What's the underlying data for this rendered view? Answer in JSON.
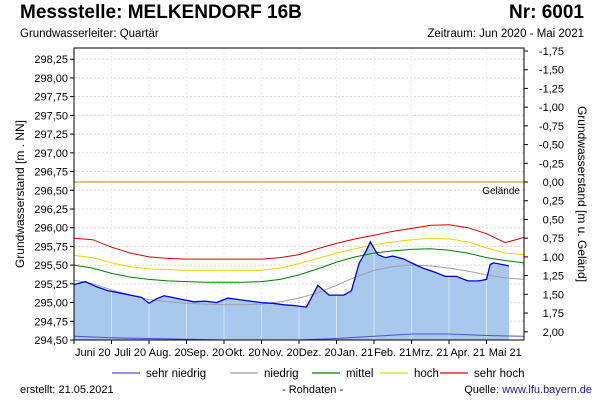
{
  "header": {
    "title": "Messstelle: MELKENDORF 16B",
    "station_nr": "Nr: 6001",
    "aquifer": "Grundwasserleiter: Quartär",
    "period": "Zeitraum: Jun 2020 - Mai 2021"
  },
  "footer": {
    "created": "erstellt:  21.05.2021",
    "note": "- Rohdaten -",
    "source_label": "Quelle: ",
    "source_value": "www.lfu.bayern.de"
  },
  "colors": {
    "sehr_niedrig": "#5050d0",
    "niedrig": "#a0a0a0",
    "mittel": "#008000",
    "hoch": "#e8d800",
    "sehr_hoch": "#e00000",
    "measured": "#0000dd",
    "area": "#a8c8ee",
    "gelaende": "#c8a040"
  },
  "chart_data": {
    "type": "line",
    "ylabel_left": "Grundwasserstand [m . NN]",
    "ylabel_right": "Grundwasserstand [m u. Geländ]",
    "ylim": [
      294.5,
      298.4
    ],
    "yticks_left": [
      "298,25",
      "298,00",
      "297,75",
      "297,50",
      "297,25",
      "297,00",
      "296,75",
      "296,50",
      "296,25",
      "296,00",
      "295,75",
      "295,50",
      "295,25",
      "295,00",
      "294,75",
      "294,50"
    ],
    "yticks_left_values": [
      298.25,
      298.0,
      297.75,
      297.5,
      297.25,
      297.0,
      296.75,
      296.5,
      296.25,
      296.0,
      295.75,
      295.5,
      295.25,
      295.0,
      294.75,
      294.5
    ],
    "yticks_right": [
      "-1,75",
      "-1,50",
      "-1,25",
      "-1,00",
      "-0,75",
      "-0,50",
      "-0,25",
      "0,00",
      "0,25",
      "0,50",
      "0,75",
      "1,00",
      "1,25",
      "1,50",
      "1,75",
      "2,00"
    ],
    "yticks_right_values": [
      298.36,
      298.11,
      297.86,
      297.61,
      297.36,
      297.11,
      296.86,
      296.61,
      296.36,
      296.11,
      295.86,
      295.61,
      295.36,
      295.11,
      294.86,
      294.61
    ],
    "gelaende": 296.61,
    "gelaende_label": "Gelände",
    "months": [
      "Juni 20",
      "Juli 20",
      "Aug. 20",
      "Sep. 20",
      "Okt. 20",
      "Nov. 20",
      "Dez. 20",
      "Jan. 21",
      "Feb. 21",
      "Mrz. 21",
      "Apr. 21",
      "Mai 21"
    ],
    "x_range": [
      0,
      12
    ],
    "grid": true,
    "legend_position": "bottom",
    "series": [
      {
        "key": "sehr_hoch",
        "name": "sehr hoch",
        "x": [
          0,
          0.5,
          1,
          1.5,
          2,
          2.5,
          3,
          3.5,
          4,
          4.5,
          5,
          5.5,
          6,
          6.5,
          7,
          7.5,
          8,
          8.5,
          9,
          9.5,
          10,
          10.5,
          11,
          11.5,
          12
        ],
        "y": [
          295.86,
          295.84,
          295.74,
          295.66,
          295.61,
          295.59,
          295.58,
          295.58,
          295.58,
          295.58,
          295.58,
          295.6,
          295.64,
          295.72,
          295.79,
          295.85,
          295.9,
          295.95,
          295.99,
          296.03,
          296.04,
          296.0,
          295.92,
          295.8,
          295.87
        ]
      },
      {
        "key": "hoch",
        "name": "hoch",
        "x": [
          0,
          0.5,
          1,
          1.5,
          2,
          2.5,
          3,
          3.5,
          4,
          4.5,
          5,
          5.5,
          6,
          6.5,
          7,
          7.5,
          8,
          8.5,
          9,
          9.5,
          10,
          10.5,
          11,
          11.5,
          12
        ],
        "y": [
          295.63,
          295.6,
          295.53,
          295.48,
          295.45,
          295.44,
          295.43,
          295.43,
          295.43,
          295.43,
          295.43,
          295.46,
          295.52,
          295.59,
          295.66,
          295.72,
          295.77,
          295.81,
          295.84,
          295.86,
          295.85,
          295.81,
          295.73,
          295.66,
          295.64
        ]
      },
      {
        "key": "mittel",
        "name": "mittel",
        "x": [
          0,
          0.5,
          1,
          1.5,
          2,
          2.5,
          3,
          3.5,
          4,
          4.5,
          5,
          5.5,
          6,
          6.5,
          7,
          7.5,
          8,
          8.5,
          9,
          9.5,
          10,
          10.5,
          11,
          11.5,
          12
        ],
        "y": [
          295.5,
          295.46,
          295.39,
          295.34,
          295.31,
          295.29,
          295.28,
          295.27,
          295.27,
          295.27,
          295.28,
          295.31,
          295.37,
          295.45,
          295.54,
          295.61,
          295.66,
          295.69,
          295.71,
          295.72,
          295.7,
          295.66,
          295.6,
          295.56,
          295.53
        ]
      },
      {
        "key": "niedrig",
        "name": "niedrig",
        "x": [
          0,
          0.5,
          1,
          1.5,
          2,
          2.5,
          3,
          3.5,
          4,
          4.5,
          5,
          5.5,
          6,
          6.5,
          7,
          7.5,
          8,
          8.5,
          9,
          9.5,
          10,
          10.5,
          11,
          11.5,
          12
        ],
        "y": [
          295.3,
          295.25,
          295.17,
          295.1,
          295.04,
          295.01,
          294.99,
          294.98,
          294.97,
          294.97,
          294.98,
          295.01,
          295.06,
          295.13,
          295.23,
          295.34,
          295.43,
          295.48,
          295.5,
          295.49,
          295.46,
          295.42,
          295.37,
          295.33,
          295.31
        ]
      },
      {
        "key": "sehr_niedrig",
        "name": "sehr niedrig",
        "x": [
          0,
          1,
          2,
          3,
          4,
          5,
          6,
          7,
          8,
          9,
          10,
          11,
          12
        ],
        "y": [
          294.55,
          294.53,
          294.52,
          294.51,
          294.5,
          294.5,
          294.5,
          294.52,
          294.55,
          294.58,
          294.58,
          294.56,
          294.55
        ]
      }
    ],
    "measured": {
      "x": [
        0,
        0.3,
        0.6,
        0.9,
        1.2,
        1.5,
        1.8,
        2.0,
        2.2,
        2.4,
        2.6,
        2.9,
        3.2,
        3.5,
        3.8,
        4.1,
        4.4,
        4.7,
        5.0,
        5.3,
        5.6,
        5.9,
        6.2,
        6.5,
        6.8,
        7.0,
        7.2,
        7.4,
        7.6,
        7.8,
        7.9,
        8.1,
        8.3,
        8.5,
        8.8,
        9.0,
        9.3,
        9.6,
        9.9,
        10.2,
        10.5,
        10.8,
        11.0,
        11.1,
        11.2,
        11.4,
        11.6
      ],
      "y": [
        295.24,
        295.28,
        295.21,
        295.16,
        295.13,
        295.1,
        295.07,
        294.99,
        295.05,
        295.09,
        295.07,
        295.04,
        295.01,
        295.02,
        295.0,
        295.06,
        295.04,
        295.02,
        295.0,
        294.99,
        294.97,
        294.96,
        294.94,
        295.23,
        295.1,
        295.1,
        295.1,
        295.16,
        295.52,
        295.7,
        295.81,
        295.64,
        295.6,
        295.62,
        295.58,
        295.53,
        295.46,
        295.41,
        295.35,
        295.35,
        295.29,
        295.29,
        295.31,
        295.51,
        295.53,
        295.51,
        295.49
      ]
    }
  },
  "legend": [
    {
      "key": "sehr_niedrig",
      "label": "sehr niedrig"
    },
    {
      "key": "niedrig",
      "label": "niedrig"
    },
    {
      "key": "mittel",
      "label": "mittel"
    },
    {
      "key": "hoch",
      "label": "hoch"
    },
    {
      "key": "sehr_hoch",
      "label": "sehr hoch"
    }
  ]
}
